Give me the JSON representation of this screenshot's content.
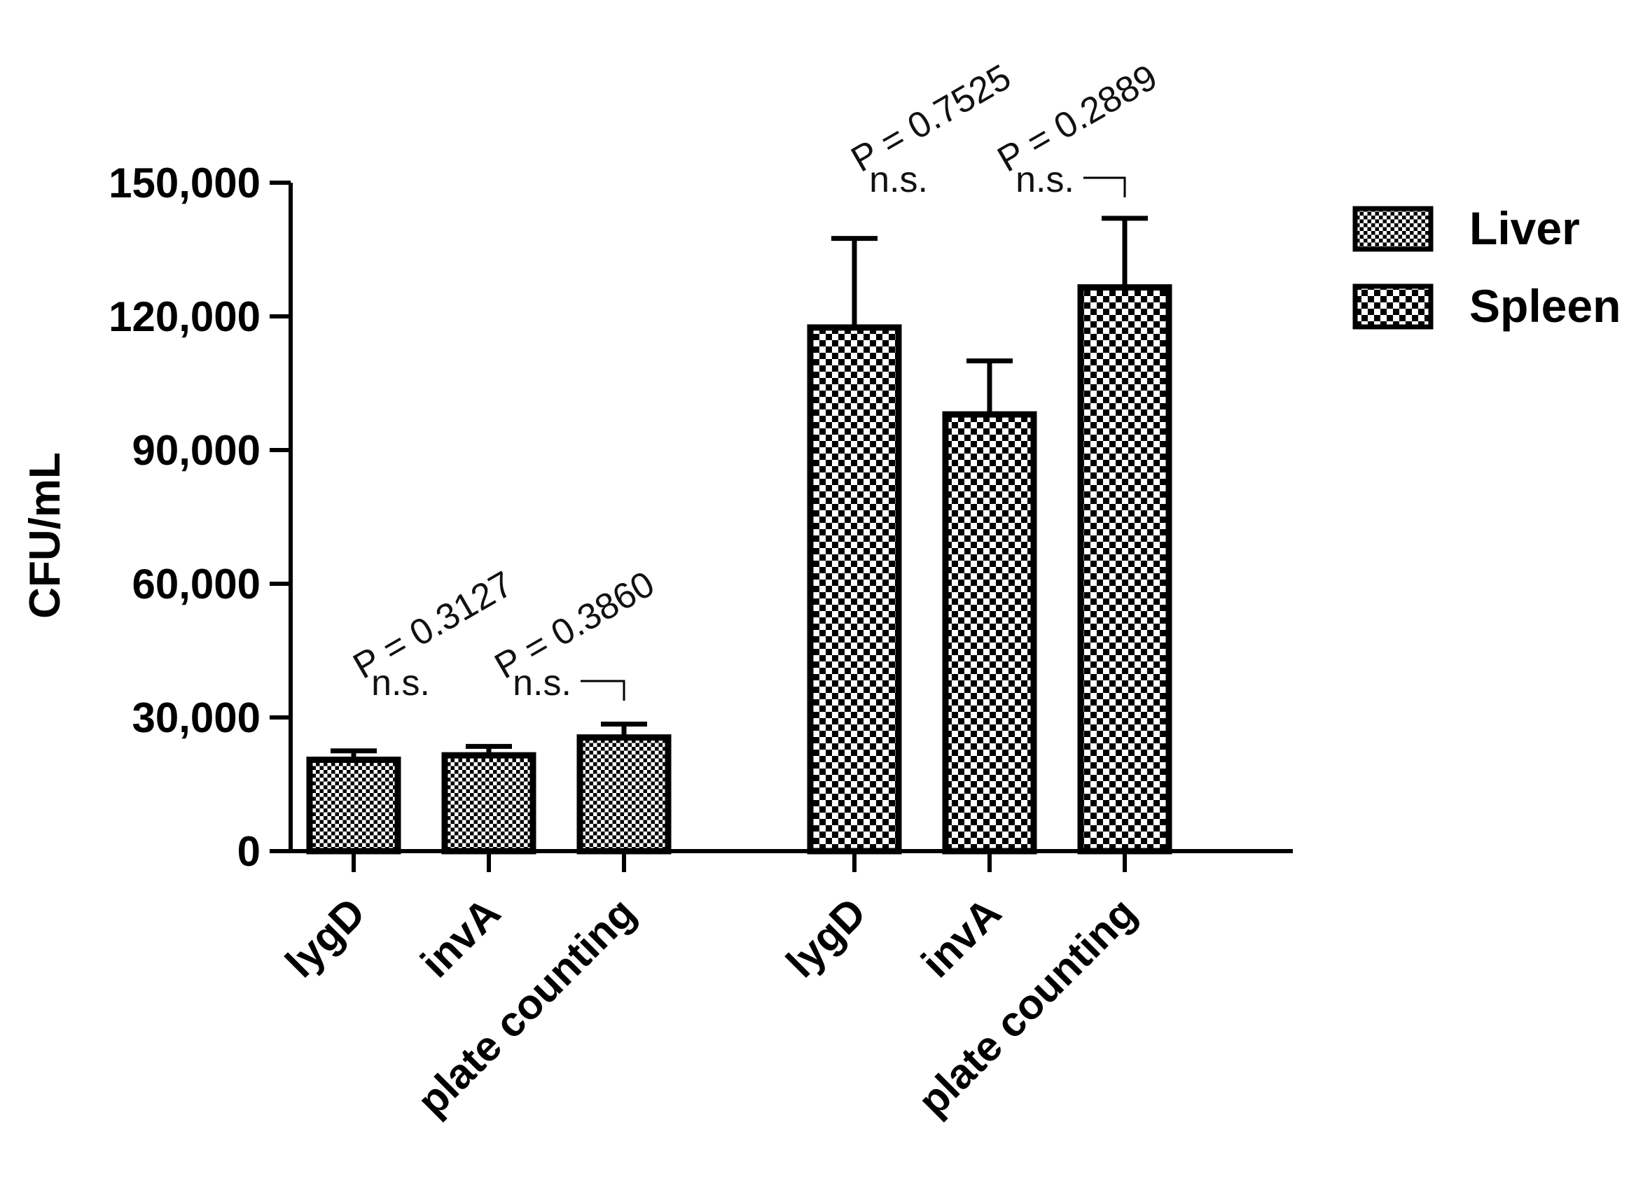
{
  "chart_data": {
    "type": "bar",
    "title": "",
    "xlabel": "",
    "ylabel": "CFU/mL",
    "ylim": [
      0,
      150000
    ],
    "yticks": [
      {
        "value": 0,
        "label": "0"
      },
      {
        "value": 30000,
        "label": "30,000"
      },
      {
        "value": 60000,
        "label": "60,000"
      },
      {
        "value": 90000,
        "label": "90,000"
      },
      {
        "value": 120000,
        "label": "120,000"
      },
      {
        "value": 150000,
        "label": "150,000"
      }
    ],
    "grid": false,
    "legend_position": "top-right",
    "series": [
      {
        "name": "Liver",
        "pattern": "fine-checker",
        "categories": [
          "lygD",
          "invA",
          "plate counting"
        ],
        "values": [
          20500,
          21500,
          25500
        ],
        "errors": [
          2000,
          2000,
          3000
        ],
        "annotations": [
          {
            "sig": "n.s.",
            "p": "P = 0.3127"
          },
          {
            "sig": "n.s.",
            "p": "P = 0.3860"
          }
        ]
      },
      {
        "name": "Spleen",
        "pattern": "coarse-checker",
        "categories": [
          "lygD",
          "invA",
          "plate counting"
        ],
        "values": [
          117500,
          98000,
          126500
        ],
        "errors": [
          20000,
          12000,
          15500
        ],
        "annotations": [
          {
            "sig": "n.s.",
            "p": "P = 0.7525"
          },
          {
            "sig": "n.s.",
            "p": "P = 0.2889"
          }
        ]
      }
    ],
    "colors": {
      "bar_stroke": "#000000",
      "pattern_fill": "#000000",
      "background": "#ffffff"
    }
  }
}
